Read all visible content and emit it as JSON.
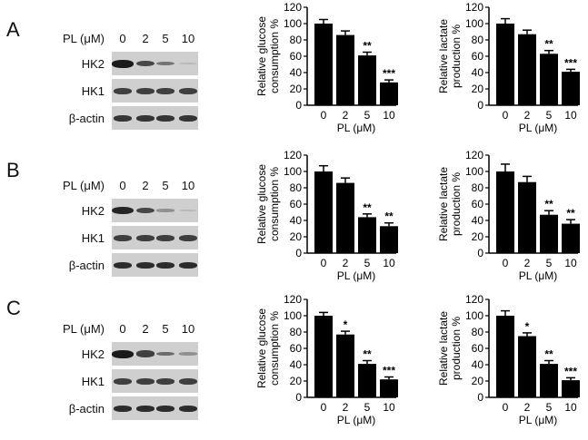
{
  "panels": [
    {
      "letter": "A",
      "blot": {
        "header_label": "PL (μM)",
        "lanes": [
          "0",
          "2",
          "5",
          "10"
        ],
        "rows": [
          {
            "label": "HK2",
            "intensities": [
              1.0,
              0.75,
              0.5,
              0.12
            ]
          },
          {
            "label": "HK1",
            "intensities": [
              0.8,
              0.8,
              0.8,
              0.8
            ]
          },
          {
            "label": "β-actin",
            "intensities": [
              0.85,
              0.85,
              0.85,
              0.85
            ]
          }
        ]
      }
    },
    {
      "letter": "B",
      "blot": {
        "header_label": "PL (μM)",
        "lanes": [
          "0",
          "2",
          "5",
          "10"
        ],
        "rows": [
          {
            "label": "HK2",
            "intensities": [
              0.95,
              0.75,
              0.35,
              0.08
            ]
          },
          {
            "label": "HK1",
            "intensities": [
              0.8,
              0.8,
              0.8,
              0.8
            ]
          },
          {
            "label": "β-actin",
            "intensities": [
              0.9,
              0.9,
              0.9,
              0.9
            ]
          }
        ]
      }
    },
    {
      "letter": "C",
      "blot": {
        "header_label": "PL (μM)",
        "lanes": [
          "0",
          "2",
          "5",
          "10"
        ],
        "rows": [
          {
            "label": "HK2",
            "intensities": [
              1.0,
              0.8,
              0.55,
              0.35
            ]
          },
          {
            "label": "HK1",
            "intensities": [
              0.8,
              0.8,
              0.8,
              0.8
            ]
          },
          {
            "label": "β-actin",
            "intensities": [
              0.9,
              0.9,
              0.9,
              0.9
            ]
          }
        ]
      }
    }
  ],
  "chart_data": [
    {
      "panel": "A",
      "type": "bar",
      "title": "",
      "xlabel": "PL (μM)",
      "ylabel": "Relative glucose consumption %",
      "categories": [
        "0",
        "2",
        "5",
        "10"
      ],
      "values": [
        100,
        86,
        61,
        28
      ],
      "errors": [
        5,
        5,
        4,
        3
      ],
      "significance": [
        "",
        "",
        "**",
        "***"
      ],
      "ylim": [
        0,
        120
      ],
      "yticks": [
        0,
        20,
        40,
        60,
        80,
        100,
        120
      ],
      "grid": false
    },
    {
      "panel": "A",
      "type": "bar",
      "title": "",
      "xlabel": "PL (μM)",
      "ylabel": "Relative lactate production %",
      "categories": [
        "0",
        "2",
        "5",
        "10"
      ],
      "values": [
        100,
        87,
        63,
        41
      ],
      "errors": [
        6,
        5,
        4,
        3
      ],
      "significance": [
        "",
        "",
        "**",
        "***"
      ],
      "ylim": [
        0,
        120
      ],
      "yticks": [
        0,
        20,
        40,
        60,
        80,
        100,
        120
      ],
      "grid": false
    },
    {
      "panel": "B",
      "type": "bar",
      "title": "",
      "xlabel": "PL (μM)",
      "ylabel": "Relative glucose consumption %",
      "categories": [
        "0",
        "2",
        "5",
        "10"
      ],
      "values": [
        100,
        86,
        44,
        33
      ],
      "errors": [
        7,
        6,
        4,
        4
      ],
      "significance": [
        "",
        "",
        "**",
        "**"
      ],
      "ylim": [
        0,
        120
      ],
      "yticks": [
        0,
        20,
        40,
        60,
        80,
        100,
        120
      ],
      "grid": false
    },
    {
      "panel": "B",
      "type": "bar",
      "title": "",
      "xlabel": "PL (μM)",
      "ylabel": "Relative lactate production %",
      "categories": [
        "0",
        "2",
        "5",
        "10"
      ],
      "values": [
        100,
        87,
        47,
        36
      ],
      "errors": [
        9,
        7,
        5,
        5
      ],
      "significance": [
        "",
        "",
        "**",
        "**"
      ],
      "ylim": [
        0,
        120
      ],
      "yticks": [
        0,
        20,
        40,
        60,
        80,
        100,
        120
      ],
      "grid": false
    },
    {
      "panel": "C",
      "type": "bar",
      "title": "",
      "xlabel": "PL (μM)",
      "ylabel": "Relative glucose consumption %",
      "categories": [
        "0",
        "2",
        "5",
        "10"
      ],
      "values": [
        100,
        77,
        41,
        22
      ],
      "errors": [
        4,
        4,
        4,
        3
      ],
      "significance": [
        "",
        "*",
        "**",
        "***"
      ],
      "ylim": [
        0,
        120
      ],
      "yticks": [
        0,
        20,
        40,
        60,
        80,
        100,
        120
      ],
      "grid": false
    },
    {
      "panel": "C",
      "type": "bar",
      "title": "",
      "xlabel": "PL (μM)",
      "ylabel": "Relative lactate production %",
      "categories": [
        "0",
        "2",
        "5",
        "10"
      ],
      "values": [
        100,
        75,
        41,
        21
      ],
      "errors": [
        6,
        4,
        4,
        3
      ],
      "significance": [
        "",
        "*",
        "**",
        "***"
      ],
      "ylim": [
        0,
        120
      ],
      "yticks": [
        0,
        20,
        40,
        60,
        80,
        100,
        120
      ],
      "grid": false
    }
  ],
  "colors": {
    "bar": "#000000",
    "blot_bg": "#cfcfcf",
    "band": "#1a1a1a"
  }
}
